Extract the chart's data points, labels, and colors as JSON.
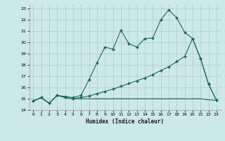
{
  "title": "",
  "xlabel": "Humidex (Indice chaleur)",
  "bg_color": "#cce8e8",
  "grid_color": "#aacccc",
  "line_color": "#1a6b5a",
  "xlim": [
    -0.5,
    23.5
  ],
  "ylim": [
    14,
    23.4
  ],
  "xticks": [
    0,
    1,
    2,
    3,
    4,
    5,
    6,
    7,
    8,
    9,
    10,
    11,
    12,
    13,
    14,
    15,
    16,
    17,
    18,
    19,
    20,
    21,
    22,
    23
  ],
  "yticks": [
    14,
    15,
    16,
    17,
    18,
    19,
    20,
    21,
    22,
    23
  ],
  "line1_x": [
    0,
    1,
    2,
    3,
    4,
    5,
    6,
    7,
    8,
    9,
    10,
    11,
    12,
    13,
    14,
    15,
    16,
    17,
    18,
    19,
    20,
    21,
    22,
    23
  ],
  "line1_y": [
    14.8,
    15.1,
    14.6,
    15.3,
    15.2,
    15.1,
    15.3,
    16.7,
    18.2,
    19.6,
    19.4,
    21.1,
    19.9,
    19.6,
    20.35,
    20.4,
    22.0,
    22.9,
    22.2,
    20.9,
    20.35,
    18.55,
    16.3,
    14.85
  ],
  "line2_x": [
    0,
    1,
    2,
    3,
    4,
    5,
    6,
    7,
    8,
    9,
    10,
    11,
    12,
    13,
    14,
    15,
    16,
    17,
    18,
    19,
    20,
    21,
    22,
    23
  ],
  "line2_y": [
    14.8,
    15.1,
    14.6,
    15.3,
    15.1,
    15.0,
    15.1,
    15.25,
    15.45,
    15.65,
    15.85,
    16.1,
    16.35,
    16.6,
    16.85,
    17.15,
    17.5,
    17.85,
    18.3,
    18.75,
    20.35,
    18.55,
    16.3,
    14.85
  ],
  "line3_x": [
    0,
    1,
    2,
    3,
    4,
    5,
    6,
    7,
    8,
    9,
    10,
    11,
    12,
    13,
    14,
    15,
    16,
    17,
    18,
    19,
    20,
    21,
    22,
    23
  ],
  "line3_y": [
    14.8,
    15.1,
    14.6,
    15.3,
    15.1,
    15.0,
    15.0,
    15.0,
    15.0,
    15.0,
    15.0,
    15.0,
    15.0,
    15.0,
    15.0,
    15.0,
    15.0,
    15.0,
    15.0,
    15.0,
    15.0,
    15.0,
    14.9,
    14.85
  ]
}
